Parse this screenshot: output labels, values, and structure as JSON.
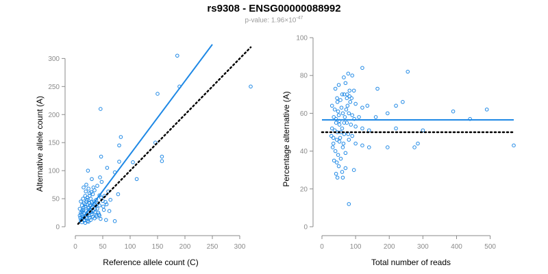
{
  "title": "rs9308 - ENSG00000088992",
  "subtitle": {
    "prefix": "p-value: 1.96×10",
    "exponent": "-47"
  },
  "colors": {
    "points": "#1e88e5",
    "fit_line": "#1e88e5",
    "reference_line": "#000000",
    "axis": "#8a8a8a"
  },
  "chart_data": [
    {
      "type": "scatter",
      "xlabel": "Reference allele count (C)",
      "ylabel": "Alternative allele count (A)",
      "xlim": [
        0,
        325
      ],
      "ylim": [
        0,
        320
      ],
      "xticks": [
        "0",
        "50",
        "100",
        "150",
        "200",
        "250",
        "300"
      ],
      "yticks": [
        "0",
        "50",
        "100",
        "150",
        "200",
        "250",
        "300"
      ],
      "grid": false,
      "lines": [
        {
          "style": "solid",
          "x": [
            5,
            250
          ],
          "y": [
            5,
            325
          ]
        },
        {
          "style": "dotted",
          "x": [
            5,
            320
          ],
          "y": [
            5,
            320
          ]
        }
      ],
      "points": [
        [
          186,
          305
        ],
        [
          190,
          250
        ],
        [
          320,
          250
        ],
        [
          150,
          237
        ],
        [
          46,
          210
        ],
        [
          83,
          160
        ],
        [
          80,
          145
        ],
        [
          146,
          150
        ],
        [
          47,
          125
        ],
        [
          158,
          125
        ],
        [
          158,
          117
        ],
        [
          80,
          116
        ],
        [
          105,
          115
        ],
        [
          23,
          100
        ],
        [
          58,
          105
        ],
        [
          112,
          85
        ],
        [
          72,
          97
        ],
        [
          45,
          88
        ],
        [
          30,
          85
        ],
        [
          48,
          80
        ],
        [
          40,
          73
        ],
        [
          20,
          75
        ],
        [
          15,
          70
        ],
        [
          24,
          68
        ],
        [
          35,
          65
        ],
        [
          78,
          58
        ],
        [
          60,
          63
        ],
        [
          26,
          60
        ],
        [
          32,
          58
        ],
        [
          44,
          56
        ],
        [
          18,
          55
        ],
        [
          22,
          52
        ],
        [
          14,
          50
        ],
        [
          28,
          50
        ],
        [
          38,
          48
        ],
        [
          50,
          46
        ],
        [
          55,
          44
        ],
        [
          10,
          45
        ],
        [
          20,
          45
        ],
        [
          16,
          42
        ],
        [
          26,
          42
        ],
        [
          35,
          40
        ],
        [
          44,
          38
        ],
        [
          12,
          38
        ],
        [
          18,
          36
        ],
        [
          24,
          35
        ],
        [
          30,
          33
        ],
        [
          40,
          32
        ],
        [
          52,
          30
        ],
        [
          62,
          28
        ],
        [
          8,
          32
        ],
        [
          14,
          30
        ],
        [
          20,
          28
        ],
        [
          28,
          28
        ],
        [
          36,
          26
        ],
        [
          10,
          25
        ],
        [
          16,
          24
        ],
        [
          22,
          22
        ],
        [
          30,
          22
        ],
        [
          44,
          20
        ],
        [
          8,
          20
        ],
        [
          14,
          18
        ],
        [
          20,
          17
        ],
        [
          26,
          16
        ],
        [
          35,
          15
        ],
        [
          46,
          14
        ],
        [
          56,
          12
        ],
        [
          72,
          10
        ],
        [
          10,
          12
        ],
        [
          16,
          11
        ],
        [
          22,
          10
        ],
        [
          28,
          12
        ],
        [
          12,
          8
        ],
        [
          18,
          7
        ],
        [
          24,
          9
        ],
        [
          32,
          18
        ],
        [
          38,
          20
        ],
        [
          42,
          25
        ],
        [
          17,
          12
        ],
        [
          21,
          15
        ],
        [
          25,
          20
        ],
        [
          13,
          15
        ],
        [
          19,
          20
        ],
        [
          23,
          26
        ],
        [
          27,
          30
        ],
        [
          31,
          35
        ],
        [
          34,
          45
        ],
        [
          37,
          38
        ],
        [
          41,
          42
        ],
        [
          47,
          52
        ],
        [
          53,
          55
        ],
        [
          12,
          28
        ],
        [
          15,
          34
        ],
        [
          18,
          40
        ],
        [
          21,
          48
        ],
        [
          24,
          33
        ],
        [
          27,
          38
        ],
        [
          30,
          44
        ],
        [
          33,
          28
        ],
        [
          36,
          32
        ],
        [
          39,
          18
        ],
        [
          43,
          22
        ],
        [
          51,
          36
        ],
        [
          57,
          40
        ],
        [
          64,
          48
        ],
        [
          9,
          16
        ],
        [
          11,
          22
        ],
        [
          13,
          26
        ],
        [
          26,
          55
        ],
        [
          29,
          62
        ],
        [
          33,
          70
        ],
        [
          19,
          63
        ],
        [
          25,
          43
        ],
        [
          29,
          26
        ]
      ]
    },
    {
      "type": "scatter",
      "xlabel": "Total number of reads",
      "ylabel": "Percentage alternative (A)",
      "xlim": [
        0,
        570
      ],
      "ylim": [
        0,
        100
      ],
      "xticks": [
        "0",
        "100",
        "200",
        "300",
        "400",
        "500"
      ],
      "yticks": [
        "0",
        "20",
        "40",
        "60",
        "80",
        "100"
      ],
      "grid": false,
      "lines": [
        {
          "style": "solid",
          "x": [
            0,
            570
          ],
          "y": [
            56.5,
            56.5
          ]
        },
        {
          "style": "dotted",
          "x": [
            0,
            570
          ],
          "y": [
            50,
            50
          ]
        }
      ],
      "points": [
        [
          120,
          84
        ],
        [
          255,
          82
        ],
        [
          78,
          81
        ],
        [
          90,
          80
        ],
        [
          65,
          79
        ],
        [
          70,
          76
        ],
        [
          50,
          75
        ],
        [
          40,
          73
        ],
        [
          165,
          73
        ],
        [
          95,
          72
        ],
        [
          75,
          70
        ],
        [
          82,
          69
        ],
        [
          60,
          70
        ],
        [
          45,
          68
        ],
        [
          55,
          67
        ],
        [
          240,
          66
        ],
        [
          220,
          64
        ],
        [
          120,
          63
        ],
        [
          135,
          64
        ],
        [
          100,
          65
        ],
        [
          30,
          64
        ],
        [
          38,
          62
        ],
        [
          48,
          61
        ],
        [
          62,
          60
        ],
        [
          80,
          60
        ],
        [
          90,
          59
        ],
        [
          110,
          58
        ],
        [
          160,
          58
        ],
        [
          195,
          60
        ],
        [
          390,
          61
        ],
        [
          490,
          62
        ],
        [
          440,
          57
        ],
        [
          35,
          58
        ],
        [
          42,
          57
        ],
        [
          52,
          56
        ],
        [
          66,
          55
        ],
        [
          74,
          55
        ],
        [
          86,
          54
        ],
        [
          100,
          53
        ],
        [
          120,
          52
        ],
        [
          140,
          51
        ],
        [
          220,
          52
        ],
        [
          300,
          51
        ],
        [
          30,
          52
        ],
        [
          38,
          51
        ],
        [
          46,
          50
        ],
        [
          56,
          50
        ],
        [
          66,
          49
        ],
        [
          78,
          49
        ],
        [
          90,
          48
        ],
        [
          28,
          48
        ],
        [
          34,
          47
        ],
        [
          44,
          46
        ],
        [
          52,
          45
        ],
        [
          64,
          44
        ],
        [
          80,
          46
        ],
        [
          100,
          44
        ],
        [
          120,
          43
        ],
        [
          140,
          42
        ],
        [
          195,
          42
        ],
        [
          275,
          42
        ],
        [
          285,
          44
        ],
        [
          570,
          43
        ],
        [
          32,
          42
        ],
        [
          40,
          40
        ],
        [
          48,
          38
        ],
        [
          56,
          36
        ],
        [
          36,
          35
        ],
        [
          44,
          34
        ],
        [
          50,
          32
        ],
        [
          70,
          31
        ],
        [
          95,
          30
        ],
        [
          60,
          29
        ],
        [
          42,
          28
        ],
        [
          46,
          26
        ],
        [
          62,
          26
        ],
        [
          80,
          12
        ],
        [
          34,
          44
        ],
        [
          60,
          52
        ],
        [
          72,
          62
        ],
        [
          84,
          66
        ],
        [
          96,
          57
        ],
        [
          58,
          63
        ],
        [
          68,
          58
        ],
        [
          76,
          64
        ],
        [
          88,
          68
        ],
        [
          42,
          55
        ],
        [
          50,
          59
        ],
        [
          54,
          47
        ],
        [
          62,
          42
        ],
        [
          70,
          39
        ],
        [
          66,
          70
        ],
        [
          74,
          68
        ],
        [
          82,
          72
        ],
        [
          46,
          66
        ],
        [
          52,
          54
        ]
      ]
    }
  ]
}
